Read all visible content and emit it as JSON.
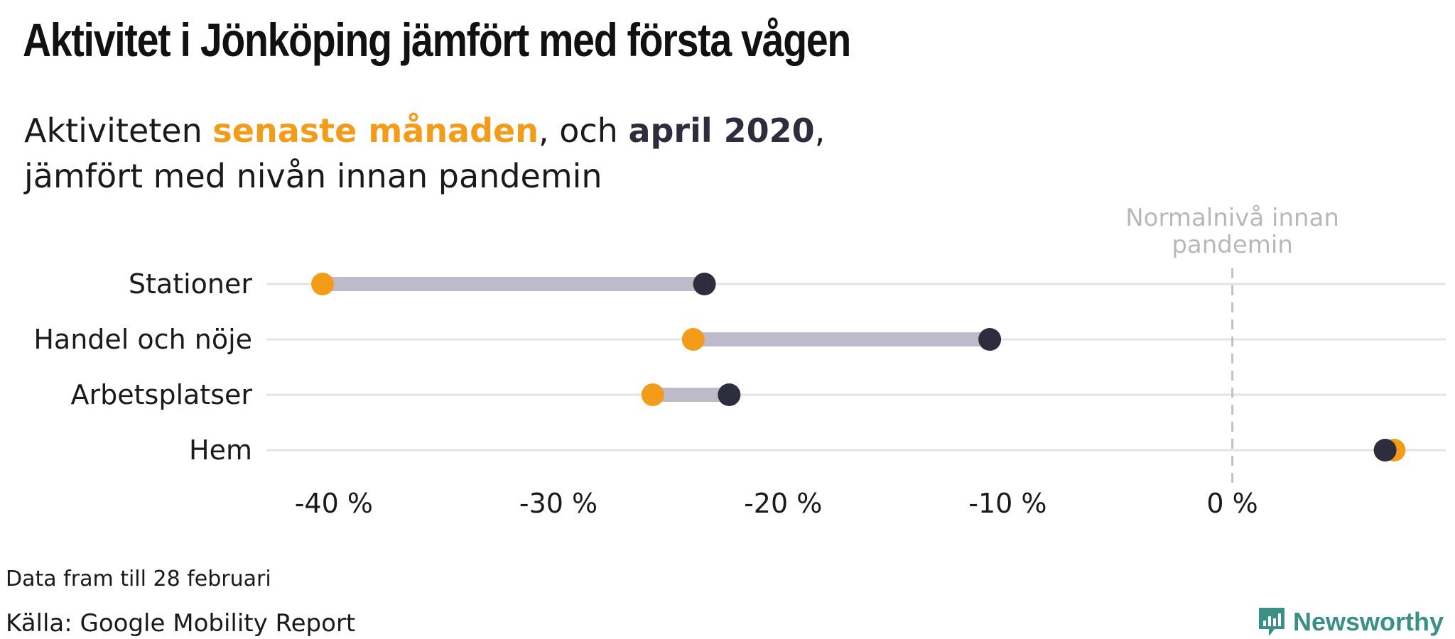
{
  "header": {
    "title": "Aktivitet i Jönköping jämfört med första vågen",
    "subtitle_part1": "Aktiviteten ",
    "subtitle_highlight_recent": "senaste månaden",
    "subtitle_part2": ", och ",
    "subtitle_highlight_april": "april 2020",
    "subtitle_part3": ",",
    "subtitle_line2": "jämfört med nivån innan pandemin"
  },
  "chart_data": {
    "type": "dumbbell",
    "categories": [
      "Stationer",
      "Handel och nöje",
      "Arbetsplatser",
      "Hem"
    ],
    "series": [
      {
        "name": "senaste månaden",
        "color": "#f39c1a",
        "values": [
          -40.5,
          -24.0,
          -25.8,
          7.2
        ]
      },
      {
        "name": "april 2020",
        "color": "#2e2d3d",
        "values": [
          -23.5,
          -10.8,
          -22.4,
          6.8
        ]
      }
    ],
    "xlim": [
      -43,
      9.5
    ],
    "x_ticks": [
      -40,
      -30,
      -20,
      -10,
      0
    ],
    "x_tick_labels": [
      "-40 %",
      "-30 %",
      "-20 %",
      "-10 %",
      "0 %"
    ],
    "reference_line": {
      "value": 0,
      "label_line1": "Normalnivå innan",
      "label_line2": "pandemin"
    },
    "connector_color": "#bdbbc9",
    "grid": true
  },
  "footer": {
    "note": "Data fram till 28 februari",
    "source": "Källa: Google Mobility Report",
    "brand": "Newsworthy"
  },
  "colors": {
    "accent_orange": "#f39c1a",
    "accent_dark": "#2e2d3d",
    "brand_teal": "#3a8f86",
    "grid": "#e3e3e3",
    "reference_line": "#c0c0c0"
  }
}
